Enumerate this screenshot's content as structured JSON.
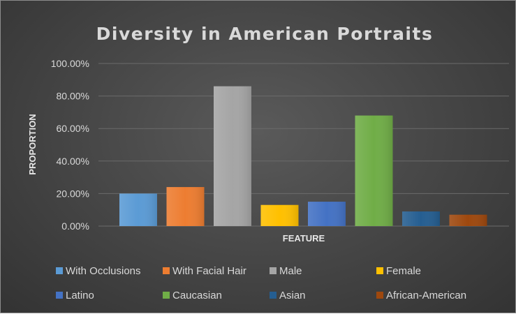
{
  "chart_data": {
    "type": "bar",
    "title": "Diversity in American Portraits",
    "xlabel": "FEATURE",
    "ylabel": "PROPORTION",
    "ylim": [
      0,
      1
    ],
    "y_ticks": [
      "0.00%",
      "20.00%",
      "40.00%",
      "60.00%",
      "80.00%",
      "100.00%"
    ],
    "grid": true,
    "legend_placement": "bottom",
    "series": [
      {
        "name": "With Occlusions",
        "value": 0.2,
        "color": "#5b9bd5"
      },
      {
        "name": "With Facial Hair",
        "value": 0.24,
        "color": "#ed7d31"
      },
      {
        "name": "Male",
        "value": 0.86,
        "color": "#a5a5a5"
      },
      {
        "name": "Female",
        "value": 0.13,
        "color": "#ffc000"
      },
      {
        "name": "Latino",
        "value": 0.15,
        "color": "#4472c4"
      },
      {
        "name": "Caucasian",
        "value": 0.68,
        "color": "#70ad47"
      },
      {
        "name": "Asian",
        "value": 0.09,
        "color": "#255e91"
      },
      {
        "name": "African-American",
        "value": 0.07,
        "color": "#9e480e"
      }
    ]
  }
}
